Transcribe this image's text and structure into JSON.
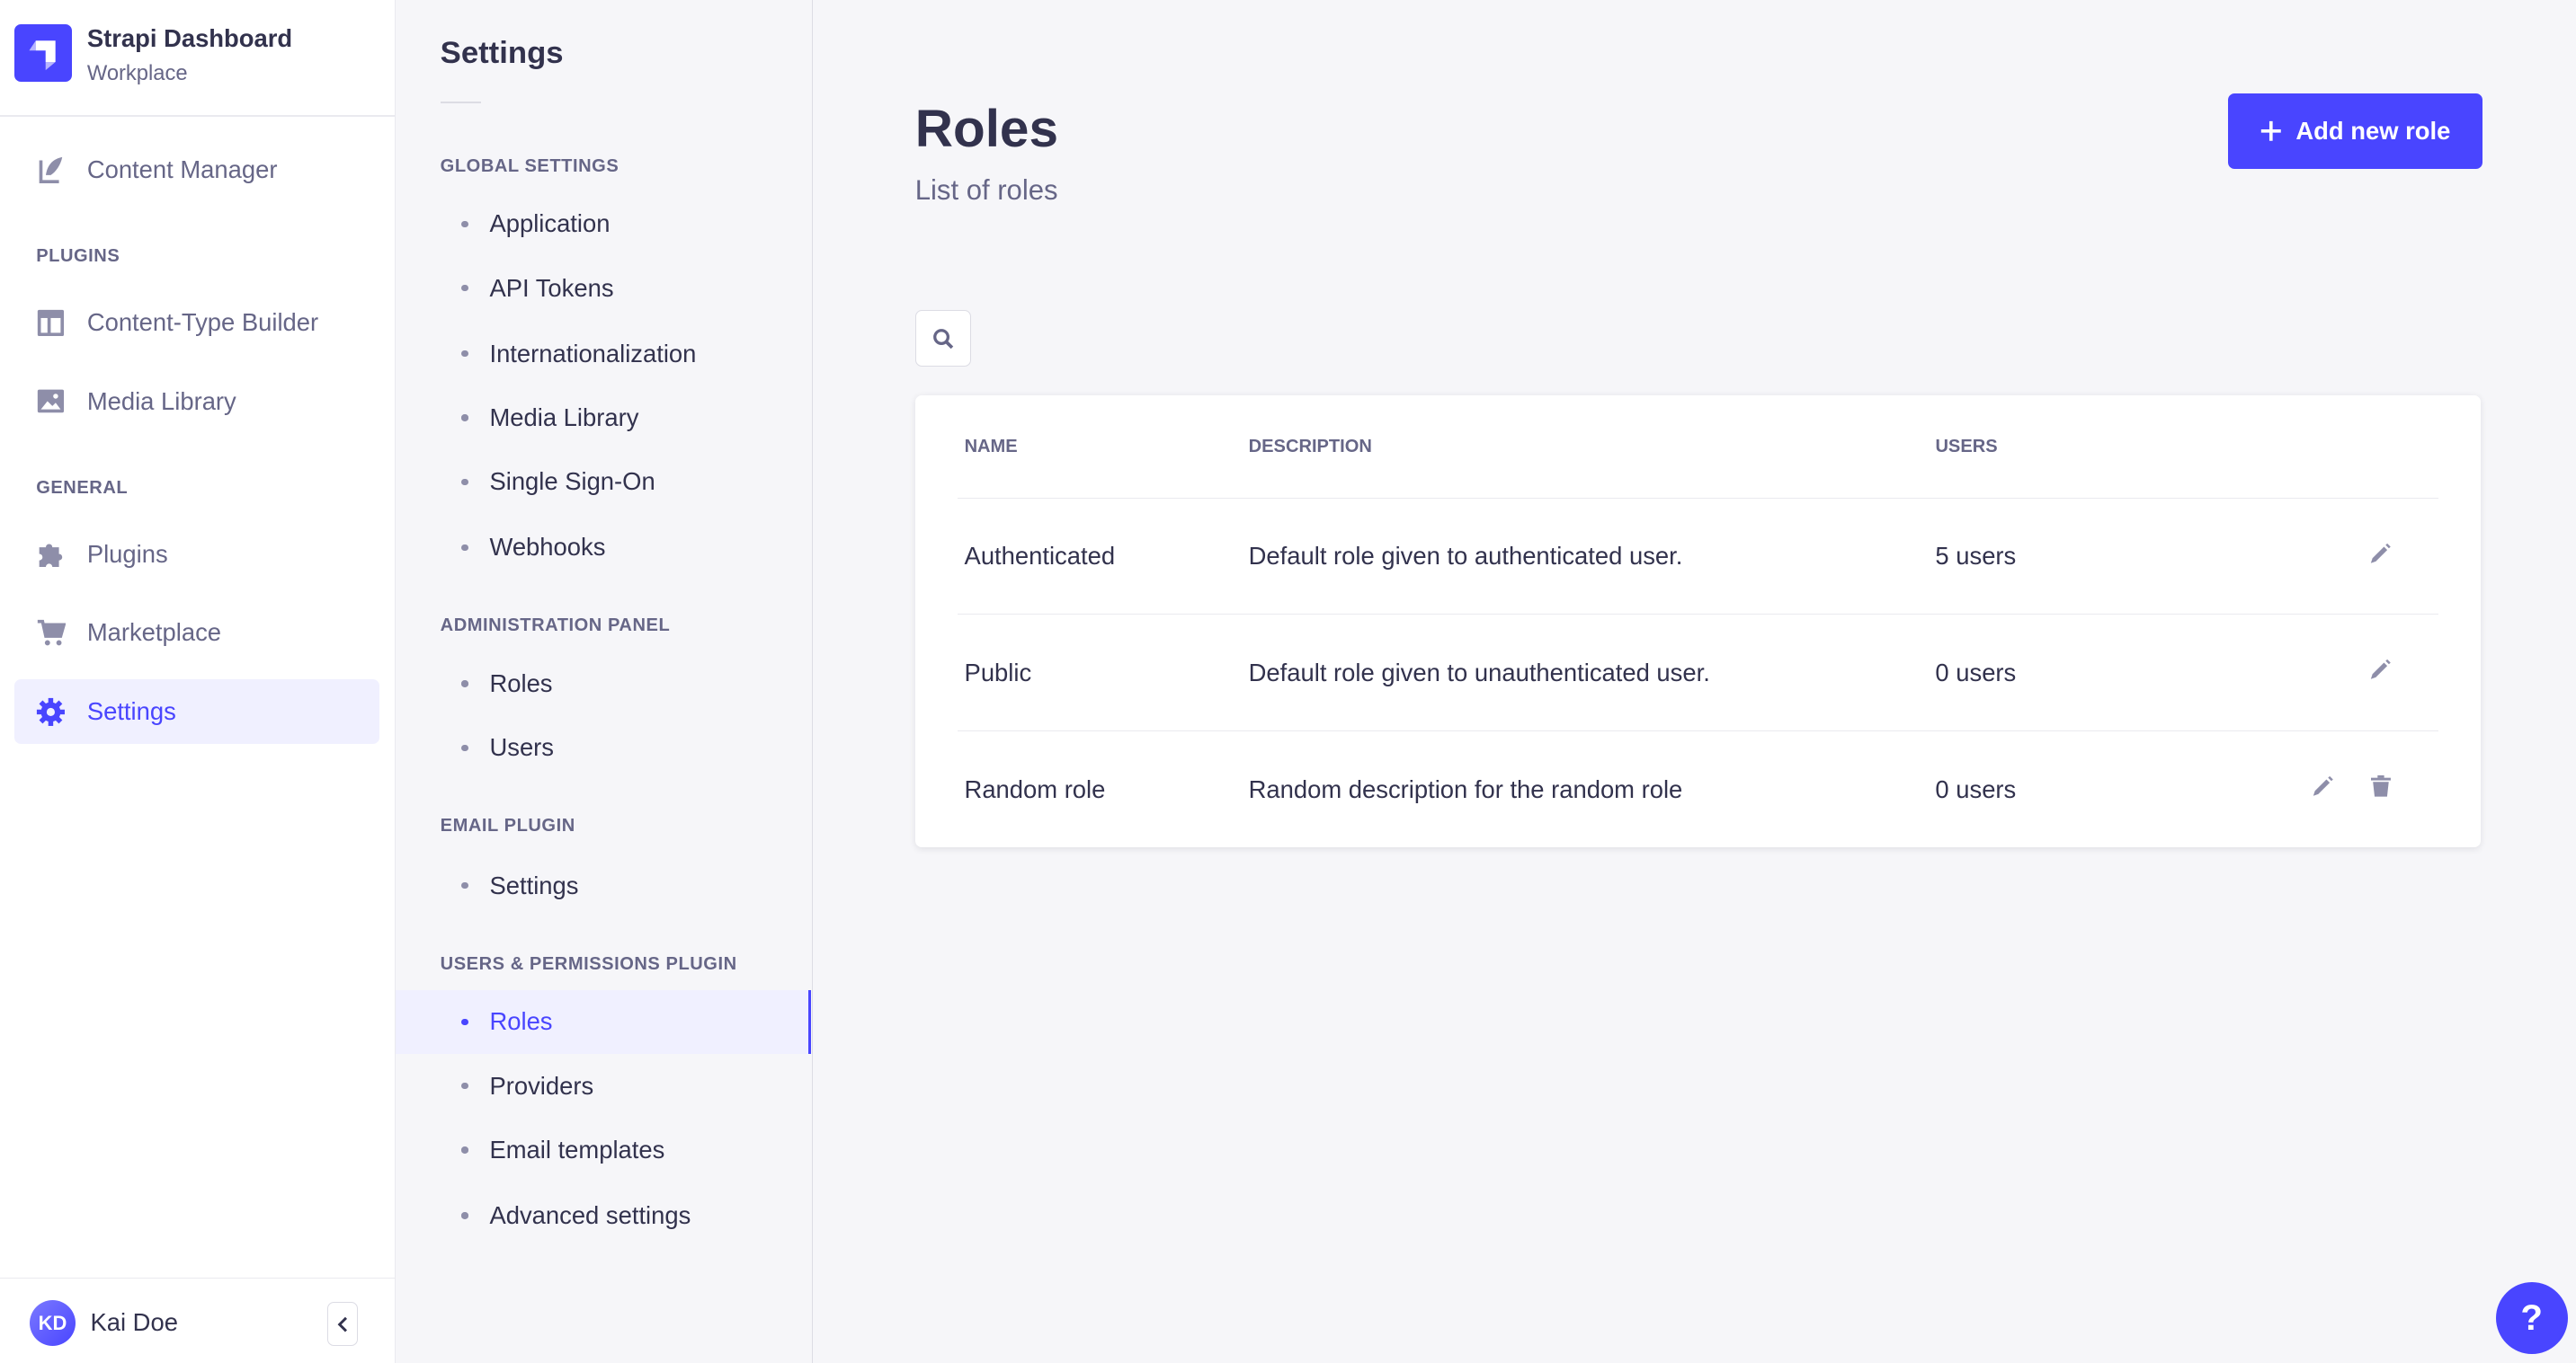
{
  "brand": {
    "title": "Strapi Dashboard",
    "subtitle": "Workplace"
  },
  "sidebar": {
    "content_manager": "Content Manager",
    "plugins_header": "PLUGINS",
    "content_type_builder": "Content-Type Builder",
    "media_library": "Media Library",
    "general_header": "GENERAL",
    "plugins": "Plugins",
    "marketplace": "Marketplace",
    "settings": "Settings",
    "user": {
      "initials": "KD",
      "name": "Kai Doe"
    }
  },
  "settings_panel": {
    "title": "Settings",
    "sections": [
      {
        "header": "GLOBAL SETTINGS",
        "items": [
          "Application",
          "API Tokens",
          "Internationalization",
          "Media Library",
          "Single Sign-On",
          "Webhooks"
        ]
      },
      {
        "header": "ADMINISTRATION PANEL",
        "items": [
          "Roles",
          "Users"
        ]
      },
      {
        "header": "EMAIL PLUGIN",
        "items": [
          "Settings"
        ]
      },
      {
        "header": "USERS & PERMISSIONS PLUGIN",
        "items": [
          "Roles",
          "Providers",
          "Email templates",
          "Advanced settings"
        ],
        "active": "Roles"
      }
    ]
  },
  "main": {
    "title": "Roles",
    "subtitle": "List of roles",
    "add_button": "Add new role",
    "table": {
      "headers": [
        "NAME",
        "DESCRIPTION",
        "USERS"
      ],
      "rows": [
        {
          "name": "Authenticated",
          "description": "Default role given to authenticated user.",
          "users": "5 users",
          "deletable": false
        },
        {
          "name": "Public",
          "description": "Default role given to unauthenticated user.",
          "users": "0 users",
          "deletable": false
        },
        {
          "name": "Random role",
          "description": "Random description for the random role",
          "users": "0 users",
          "deletable": true
        }
      ]
    }
  },
  "help": "?",
  "colors": {
    "primary": "#4945ff",
    "active_bg": "#f0f0ff",
    "text": "#32324d",
    "muted": "#666687",
    "icon": "#8e8ea9"
  }
}
